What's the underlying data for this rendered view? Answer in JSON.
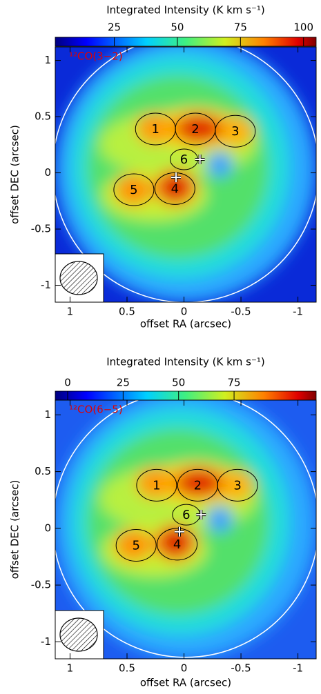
{
  "chart_data": [
    {
      "type": "image",
      "colorbar_title": "Integrated Intensity (K km s⁻¹)",
      "colorbar_lim": [
        1.6,
        105
      ],
      "colorbar_ticks": [
        25,
        50,
        75,
        100
      ],
      "annotation": "¹²CO(3−2)",
      "xlabel": "offset RA (arcsec)",
      "ylabel": "offset DEC (arcsec)",
      "xlim": [
        1.13,
        -1.16
      ],
      "ylim": [
        -1.15,
        1.12
      ],
      "xticks": [
        1,
        0.5,
        0,
        -0.5,
        -1
      ],
      "yticks": [
        1,
        0.5,
        0,
        -0.5,
        -1
      ],
      "regions": [
        {
          "label": "1",
          "x": 0.25,
          "y": 0.39
        },
        {
          "label": "2",
          "x": -0.1,
          "y": 0.39
        },
        {
          "label": "3",
          "x": -0.45,
          "y": 0.37
        },
        {
          "label": "4",
          "x": 0.08,
          "y": -0.14
        },
        {
          "label": "5",
          "x": 0.44,
          "y": -0.15
        },
        {
          "label": "6",
          "x": 0,
          "y": 0.12
        }
      ],
      "peaks": {
        "x": [
          -0.14,
          0.07
        ],
        "y": [
          0.12,
          -0.04
        ]
      }
    },
    {
      "type": "image",
      "colorbar_title": "Integrated Intensity (K km s⁻¹)",
      "colorbar_lim": [
        -5.6,
        112
      ],
      "colorbar_ticks": [
        0,
        25,
        50,
        75
      ],
      "annotation": "¹²CO(6−5)",
      "xlabel": "offset RA (arcsec)",
      "ylabel": "offset DEC (arcsec)",
      "xlim": [
        1.13,
        -1.16
      ],
      "ylim": [
        -1.15,
        1.13
      ],
      "xticks": [
        1,
        0.5,
        0,
        -0.5,
        -1
      ],
      "yticks": [
        1,
        0.5,
        0,
        -0.5,
        -1
      ],
      "regions": [
        {
          "label": "1",
          "x": 0.24,
          "y": 0.38
        },
        {
          "label": "2",
          "x": -0.12,
          "y": 0.38
        },
        {
          "label": "3",
          "x": -0.47,
          "y": 0.38
        },
        {
          "label": "4",
          "x": 0.06,
          "y": -0.14
        },
        {
          "label": "5",
          "x": 0.42,
          "y": -0.15
        },
        {
          "label": "6",
          "x": -0.02,
          "y": 0.12
        }
      ],
      "peaks": {
        "x": [
          -0.15,
          0.04
        ],
        "y": [
          0.12,
          -0.03
        ]
      }
    }
  ]
}
